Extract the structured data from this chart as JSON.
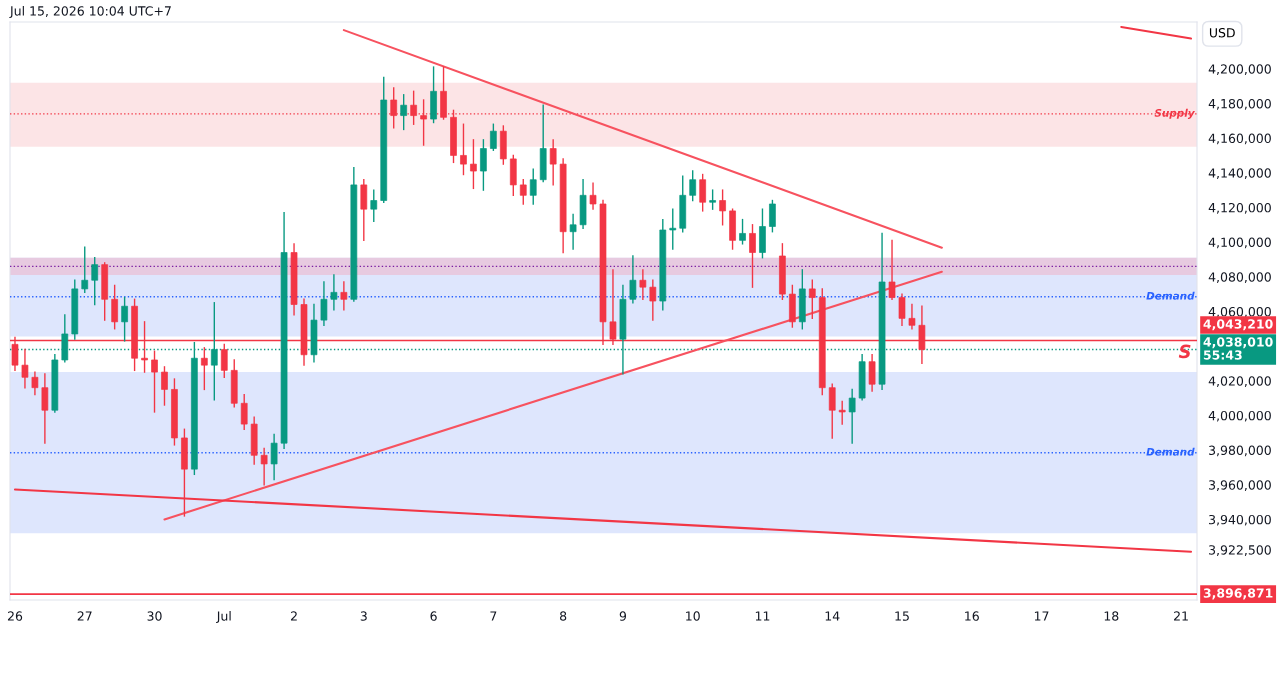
{
  "chart_data": {
    "type": "candlestick",
    "title": "Jul 15, 2026 10:04 UTC+7",
    "ylabel": "USD",
    "categories": [
      "26",
      null,
      null,
      null,
      null,
      null,
      null,
      "27",
      null,
      null,
      null,
      null,
      null,
      null,
      "30",
      null,
      null,
      null,
      null,
      null,
      null,
      "Jul",
      null,
      null,
      null,
      null,
      null,
      null,
      "2",
      null,
      null,
      null,
      null,
      null,
      null,
      "3",
      null,
      null,
      null,
      null,
      null,
      null,
      "6",
      null,
      null,
      null,
      null,
      null,
      "7",
      null,
      null,
      null,
      null,
      null,
      null,
      "8",
      null,
      null,
      null,
      null,
      null,
      "9",
      null,
      null,
      null,
      null,
      null,
      null,
      "10",
      null,
      null,
      null,
      null,
      null,
      null,
      "11",
      null,
      null,
      null,
      null,
      null,
      null,
      "14",
      null,
      null,
      null,
      null,
      null,
      null,
      "15",
      null,
      null,
      null,
      null,
      null,
      null,
      "16",
      null,
      null,
      null,
      null,
      null,
      null,
      "17",
      null,
      null,
      null,
      null,
      null,
      null,
      "18",
      null,
      null,
      null,
      null,
      null,
      null,
      "21",
      null
    ],
    "ohlc": [
      [
        4041000,
        4045000,
        4026000,
        4029000
      ],
      [
        4029000,
        4038000,
        4016000,
        4022000
      ],
      [
        4022000,
        4025000,
        4012000,
        4016000
      ],
      [
        4016000,
        4024000,
        3984000,
        4003000
      ],
      [
        4003000,
        4035000,
        4002000,
        4032000
      ],
      [
        4032000,
        4058000,
        4031000,
        4047000
      ],
      [
        4047000,
        4078000,
        4044000,
        4073000
      ],
      [
        4073000,
        4097000,
        4071000,
        4078000
      ],
      [
        4078000,
        4091000,
        4064000,
        4087000
      ],
      [
        4087000,
        4088000,
        4055000,
        4067000
      ],
      [
        4067000,
        4075000,
        4050000,
        4054000
      ],
      [
        4054000,
        4068000,
        4043000,
        4063000
      ],
      [
        4063000,
        4067000,
        4026000,
        4033000
      ],
      [
        4033000,
        4054000,
        4025000,
        4032000
      ],
      [
        4032000,
        4037000,
        4002000,
        4025000
      ],
      [
        4025000,
        4028000,
        4006000,
        4015000
      ],
      [
        4015000,
        4021000,
        3983000,
        3987000
      ],
      [
        3987000,
        3992000,
        3942000,
        3969000
      ],
      [
        3969000,
        4042000,
        3966000,
        4033000
      ],
      [
        4033000,
        4039000,
        4015000,
        4029000
      ],
      [
        4029000,
        4065000,
        4009000,
        4038000
      ],
      [
        4038000,
        4041000,
        4022000,
        4026000
      ],
      [
        4026000,
        4032000,
        4005000,
        4007000
      ],
      [
        4007000,
        4012000,
        3992000,
        3995000
      ],
      [
        3995000,
        3999000,
        3972000,
        3977000
      ],
      [
        3977000,
        3981000,
        3960000,
        3972000
      ],
      [
        3972000,
        3989000,
        3963000,
        3984000
      ],
      [
        3984000,
        4117000,
        3981000,
        4094000
      ],
      [
        4094000,
        4099000,
        4058000,
        4064000
      ],
      [
        4064000,
        4067000,
        4029000,
        4035000
      ],
      [
        4035000,
        4064000,
        4031000,
        4055000
      ],
      [
        4055000,
        4077000,
        4052000,
        4067000
      ],
      [
        4067000,
        4081000,
        4061000,
        4071000
      ],
      [
        4071000,
        4077000,
        4061000,
        4067000
      ],
      [
        4067000,
        4143000,
        4066000,
        4133000
      ],
      [
        4133000,
        4136000,
        4101000,
        4119000
      ],
      [
        4119000,
        4130000,
        4112000,
        4124000
      ],
      [
        4124000,
        4195000,
        4123000,
        4182000
      ],
      [
        4182000,
        4189000,
        4166000,
        4173000
      ],
      [
        4173000,
        4185000,
        4165000,
        4179000
      ],
      [
        4179000,
        4187000,
        4168000,
        4173000
      ],
      [
        4173000,
        4182000,
        4156000,
        4171000
      ],
      [
        4171000,
        4201000,
        4169000,
        4187000
      ],
      [
        4187000,
        4201000,
        4171000,
        4172000
      ],
      [
        4172000,
        4176000,
        4146000,
        4150000
      ],
      [
        4150000,
        4168000,
        4139000,
        4145000
      ],
      [
        4145000,
        4159000,
        4131000,
        4141000
      ],
      [
        4141000,
        4159000,
        4130000,
        4154000
      ],
      [
        4154000,
        4168000,
        4153000,
        4164000
      ],
      [
        4164000,
        4167000,
        4145000,
        4148000
      ],
      [
        4148000,
        4150000,
        4127000,
        4133000
      ],
      [
        4133000,
        4136000,
        4122000,
        4127000
      ],
      [
        4127000,
        4142000,
        4122000,
        4136000
      ],
      [
        4136000,
        4179000,
        4135000,
        4154000
      ],
      [
        4154000,
        4159000,
        4133000,
        4145000
      ],
      [
        4145000,
        4148000,
        4094000,
        4106000
      ],
      [
        4106000,
        4116000,
        4096000,
        4110000
      ],
      [
        4110000,
        4136000,
        4108000,
        4127000
      ],
      [
        4127000,
        4134000,
        4119000,
        4122000
      ],
      [
        4122000,
        4124000,
        4041000,
        4054000
      ],
      [
        4054000,
        4084000,
        4041000,
        4044000
      ],
      [
        4044000,
        4075000,
        4024000,
        4067000
      ],
      [
        4067000,
        4092000,
        4065000,
        4078000
      ],
      [
        4078000,
        4084000,
        4067000,
        4074000
      ],
      [
        4074000,
        4078000,
        4055000,
        4066000
      ],
      [
        4066000,
        4113000,
        4061000,
        4107000
      ],
      [
        4107000,
        4119000,
        4096000,
        4108000
      ],
      [
        4108000,
        4138000,
        4106000,
        4127000
      ],
      [
        4127000,
        4141000,
        4124000,
        4136000
      ],
      [
        4136000,
        4139000,
        4118000,
        4123000
      ],
      [
        4123000,
        4130000,
        4119000,
        4124000
      ],
      [
        4124000,
        4130000,
        4110000,
        4118000
      ],
      [
        4118000,
        4119000,
        4096000,
        4101000
      ],
      [
        4101000,
        4113000,
        4099000,
        4105000
      ],
      [
        4105000,
        4110000,
        4074000,
        4094000
      ],
      [
        4094000,
        4119000,
        4091000,
        4109000
      ],
      [
        4109000,
        4124000,
        4106000,
        4122000
      ],
      [
        4092000,
        4099000,
        4067000,
        4070000
      ],
      [
        4070000,
        4075000,
        4051000,
        4054000
      ],
      [
        4054000,
        4084000,
        4050000,
        4073000
      ],
      [
        4073000,
        4078000,
        4056000,
        4068000
      ],
      [
        4068000,
        4073000,
        4012000,
        4016000
      ],
      [
        4016000,
        4018000,
        3987000,
        4003000
      ],
      [
        4003000,
        4008000,
        3995000,
        4002000
      ],
      [
        4002000,
        4015000,
        3984000,
        4010000
      ],
      [
        4010000,
        4035000,
        4009000,
        4031000
      ],
      [
        4031000,
        4035000,
        4014000,
        4018000
      ],
      [
        4018000,
        4105000,
        4015000,
        4077000
      ],
      [
        4077000,
        4101000,
        4067000,
        4068000
      ],
      [
        4068000,
        4070000,
        4052000,
        4056000
      ],
      [
        4056000,
        4064000,
        4050000,
        4052000
      ],
      [
        4052000,
        4063000,
        4030000,
        4038010
      ],
      null,
      null,
      null,
      null,
      null,
      null,
      null,
      null,
      null,
      null,
      null,
      null,
      null,
      null,
      null,
      null,
      null,
      null,
      null,
      null,
      null,
      null,
      null,
      null,
      null,
      null,
      null
    ],
    "series": [
      {
        "type": "line",
        "color": "#f7525f",
        "values": [
          null,
          null,
          null,
          null,
          null,
          null,
          null,
          null,
          null,
          null,
          null,
          null,
          null,
          null,
          null,
          null,
          null,
          null,
          null,
          null,
          null,
          null,
          null,
          null,
          null,
          null,
          null,
          null,
          null,
          null,
          null,
          null,
          null,
          4222300,
          null,
          null,
          null,
          null,
          null,
          null,
          null,
          null,
          null,
          null,
          null,
          null,
          null,
          null,
          null,
          null,
          null,
          null,
          null,
          null,
          null,
          null,
          null,
          null,
          null,
          null,
          null,
          null,
          null,
          null,
          null,
          null,
          null,
          null,
          null,
          null,
          null,
          null,
          null,
          null,
          null,
          null,
          null,
          null,
          null,
          null,
          null,
          null,
          null,
          null,
          null,
          null,
          null,
          null,
          null,
          null,
          null,
          null,
          null,
          4096800,
          null,
          null,
          null,
          null,
          null,
          null,
          null,
          null,
          null,
          null,
          null,
          null,
          null,
          null,
          null,
          null,
          null,
          null,
          null,
          null,
          null,
          null,
          null,
          null,
          null
        ]
      },
      {
        "type": "line",
        "color": "#f7525f",
        "values": [
          null,
          null,
          null,
          null,
          null,
          null,
          null,
          null,
          null,
          null,
          null,
          null,
          null,
          null,
          null,
          3940000,
          null,
          null,
          null,
          null,
          null,
          null,
          null,
          null,
          null,
          null,
          null,
          null,
          null,
          null,
          null,
          null,
          null,
          null,
          null,
          null,
          null,
          null,
          null,
          null,
          null,
          null,
          null,
          null,
          null,
          null,
          null,
          null,
          null,
          null,
          null,
          null,
          null,
          null,
          null,
          null,
          null,
          null,
          null,
          null,
          null,
          null,
          null,
          null,
          null,
          null,
          null,
          null,
          null,
          null,
          null,
          null,
          null,
          null,
          null,
          null,
          null,
          null,
          null,
          null,
          null,
          null,
          null,
          null,
          null,
          null,
          null,
          null,
          null,
          null,
          null,
          null,
          null,
          4082900,
          null,
          null,
          null,
          null,
          null,
          null,
          null,
          null,
          null,
          null,
          null,
          null,
          null,
          null,
          null,
          null,
          null,
          null,
          null,
          null,
          null,
          null,
          null,
          null,
          null
        ]
      },
      {
        "type": "line",
        "color": "#f23645",
        "values": [
          3957300,
          null,
          null,
          null,
          null,
          null,
          null,
          null,
          null,
          null,
          null,
          null,
          null,
          null,
          null,
          null,
          null,
          null,
          null,
          null,
          null,
          null,
          null,
          null,
          null,
          null,
          null,
          null,
          null,
          null,
          null,
          null,
          null,
          null,
          null,
          null,
          null,
          null,
          null,
          null,
          null,
          null,
          null,
          null,
          null,
          null,
          null,
          null,
          null,
          null,
          null,
          null,
          null,
          null,
          null,
          null,
          null,
          null,
          null,
          null,
          null,
          null,
          null,
          null,
          null,
          null,
          null,
          null,
          null,
          null,
          null,
          null,
          null,
          null,
          null,
          null,
          null,
          null,
          null,
          null,
          null,
          null,
          null,
          null,
          null,
          null,
          null,
          null,
          null,
          null,
          null,
          null,
          null,
          null,
          null,
          null,
          null,
          null,
          null,
          null,
          null,
          null,
          null,
          null,
          null,
          null,
          null,
          null,
          null,
          null,
          null,
          null,
          null,
          null,
          null,
          null,
          null,
          null,
          3921300
        ]
      },
      {
        "type": "line",
        "color": "#f23645",
        "values": [
          null,
          null,
          null,
          null,
          null,
          null,
          null,
          null,
          null,
          null,
          null,
          null,
          null,
          null,
          null,
          null,
          null,
          null,
          null,
          null,
          null,
          null,
          null,
          null,
          null,
          null,
          null,
          null,
          null,
          null,
          null,
          null,
          null,
          null,
          null,
          null,
          null,
          null,
          null,
          null,
          null,
          null,
          null,
          null,
          null,
          null,
          null,
          null,
          null,
          null,
          null,
          null,
          null,
          null,
          null,
          null,
          null,
          null,
          null,
          null,
          null,
          null,
          null,
          null,
          null,
          null,
          null,
          null,
          null,
          null,
          null,
          null,
          null,
          null,
          null,
          null,
          null,
          null,
          null,
          null,
          null,
          null,
          null,
          null,
          null,
          null,
          null,
          null,
          null,
          null,
          null,
          null,
          null,
          null,
          null,
          null,
          null,
          null,
          null,
          null,
          null,
          null,
          null,
          null,
          null,
          null,
          null,
          null,
          null,
          null,
          null,
          4224100,
          null,
          null,
          null,
          null,
          null,
          null,
          4217500
        ]
      }
    ],
    "bands": [
      {
        "axis": "y",
        "from": 4155000,
        "to": 4192000,
        "color": "#fce4e6"
      },
      {
        "axis": "y",
        "from": 4045500,
        "to": 4091000,
        "color": "#d6e0fd"
      },
      {
        "axis": "y",
        "from": 4081000,
        "to": 4091000,
        "color": "#e8c3d8"
      },
      {
        "axis": "y",
        "from": 3932000,
        "to": 4025000,
        "color": "#d6e0fd"
      }
    ],
    "ref_lines": [
      {
        "axis": "y",
        "value": 4174000,
        "label": "Supply",
        "color": "#f23645",
        "line_style": "dotted"
      },
      {
        "axis": "y",
        "value": 4086000,
        "color": "#7b1fa2",
        "line_style": "dotted"
      },
      {
        "axis": "y",
        "value": 4068500,
        "label": "Demand",
        "color": "#2962ff",
        "line_style": "dotted"
      },
      {
        "axis": "y",
        "value": 3978500,
        "label": "Demand",
        "color": "#2962ff",
        "line_style": "dotted"
      },
      {
        "axis": "y",
        "value": 4043210,
        "label": "4,043,210",
        "color": "#f23645",
        "line_style": "solid"
      },
      {
        "axis": "y",
        "value": 4038010,
        "label": "4,038,010\n55:43",
        "color": "#089981",
        "line_style": "dotted"
      },
      {
        "axis": "y",
        "value": 3896871,
        "label": "3,896,871",
        "color": "#f23645",
        "line_style": "solid"
      }
    ],
    "annotations": [
      {
        "text": "S",
        "y": 4036000
      }
    ],
    "ylim": [
      3893500,
      4227000
    ],
    "yticks": [
      {
        "value": 3922500,
        "label": "3,922,500"
      },
      {
        "value": 3940000,
        "label": "3,940,000"
      },
      {
        "value": 3960000,
        "label": "3,960,000"
      },
      {
        "value": 3980000,
        "label": "3,980,000"
      },
      {
        "value": 4000000,
        "label": "4,000,000"
      },
      {
        "value": 4020000,
        "label": "4,020,000"
      },
      {
        "value": 4060000,
        "label": "4,060,000"
      },
      {
        "value": 4080000,
        "label": "4,080,000"
      },
      {
        "value": 4100000,
        "label": "4,100,000"
      },
      {
        "value": 4120000,
        "label": "4,120,000"
      },
      {
        "value": 4140000,
        "label": "4,140,000"
      },
      {
        "value": 4160000,
        "label": "4,160,000"
      },
      {
        "value": 4180000,
        "label": "4,180,000"
      },
      {
        "value": 4200000,
        "label": "4,200,000"
      }
    ],
    "grid": false,
    "legend": false
  }
}
